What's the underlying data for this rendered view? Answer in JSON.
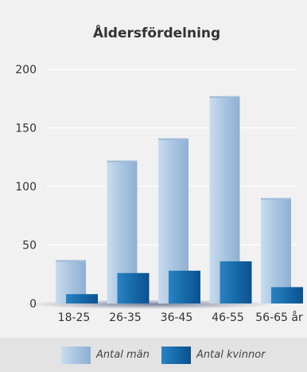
{
  "chart_data": {
    "type": "bar",
    "title": "Åldersfördelning",
    "categories": [
      "18-25",
      "26-35",
      "36-45",
      "46-55",
      "56-65 år"
    ],
    "series": [
      {
        "name": "Antal män",
        "values": [
          37,
          122,
          141,
          177,
          90
        ]
      },
      {
        "name": "Antal kvinnor",
        "values": [
          8,
          26,
          28,
          36,
          14
        ]
      }
    ],
    "ylim": [
      0,
      200
    ],
    "yticks": [
      0,
      50,
      100,
      150,
      200
    ],
    "grid": true,
    "legend_position": "bottom"
  },
  "colors": {
    "background": "#f1f1f1",
    "legend_band": "#e3e3e3",
    "men_bar_light": "#bcd3e8",
    "men_bar_dark": "#8fb0d3",
    "women_bar_light": "#1e73b3",
    "women_bar_dark": "#0c5190"
  }
}
